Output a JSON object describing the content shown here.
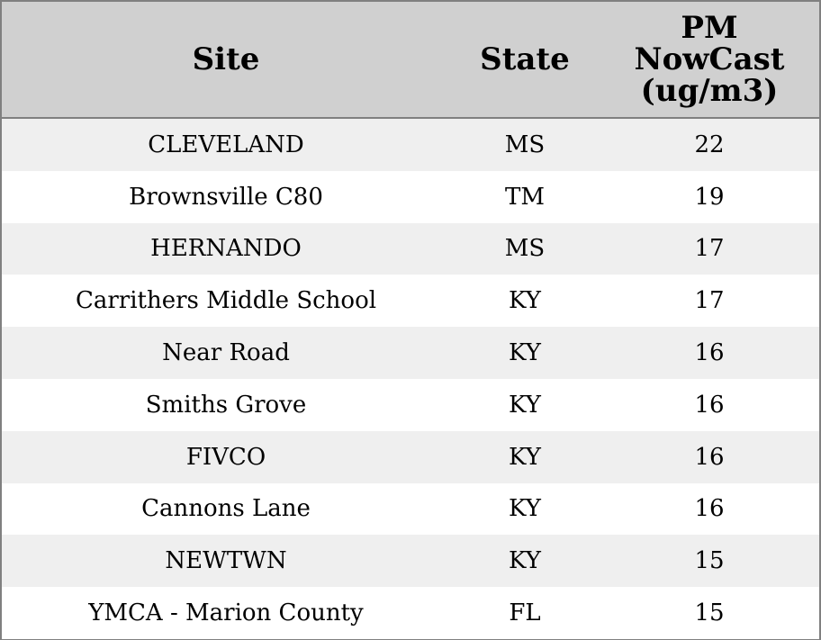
{
  "chart_data": {
    "type": "table",
    "columns": [
      "Site",
      "State",
      "PM NowCast (ug/m3)"
    ],
    "header_lines": {
      "site": "Site",
      "state": "State",
      "pm": [
        "PM",
        "NowCast",
        "(ug/m3)"
      ]
    },
    "rows": [
      {
        "site": "CLEVELAND",
        "state": "MS",
        "pm": "22"
      },
      {
        "site": "Brownsville C80",
        "state": "TM",
        "pm": "19"
      },
      {
        "site": "HERNANDO",
        "state": "MS",
        "pm": "17"
      },
      {
        "site": "Carrithers Middle School",
        "state": "KY",
        "pm": "17"
      },
      {
        "site": "Near Road",
        "state": "KY",
        "pm": "16"
      },
      {
        "site": "Smiths Grove",
        "state": "KY",
        "pm": "16"
      },
      {
        "site": "FIVCO",
        "state": "KY",
        "pm": "16"
      },
      {
        "site": "Cannons Lane",
        "state": "KY",
        "pm": "16"
      },
      {
        "site": "NEWTWN",
        "state": "KY",
        "pm": "15"
      },
      {
        "site": "YMCA - Marion County",
        "state": "FL",
        "pm": "15"
      }
    ]
  },
  "colors": {
    "header_background": "#d0d0d0",
    "shaded_row": "#efefef",
    "plain_row": "#ffffff",
    "border": "#808080"
  }
}
